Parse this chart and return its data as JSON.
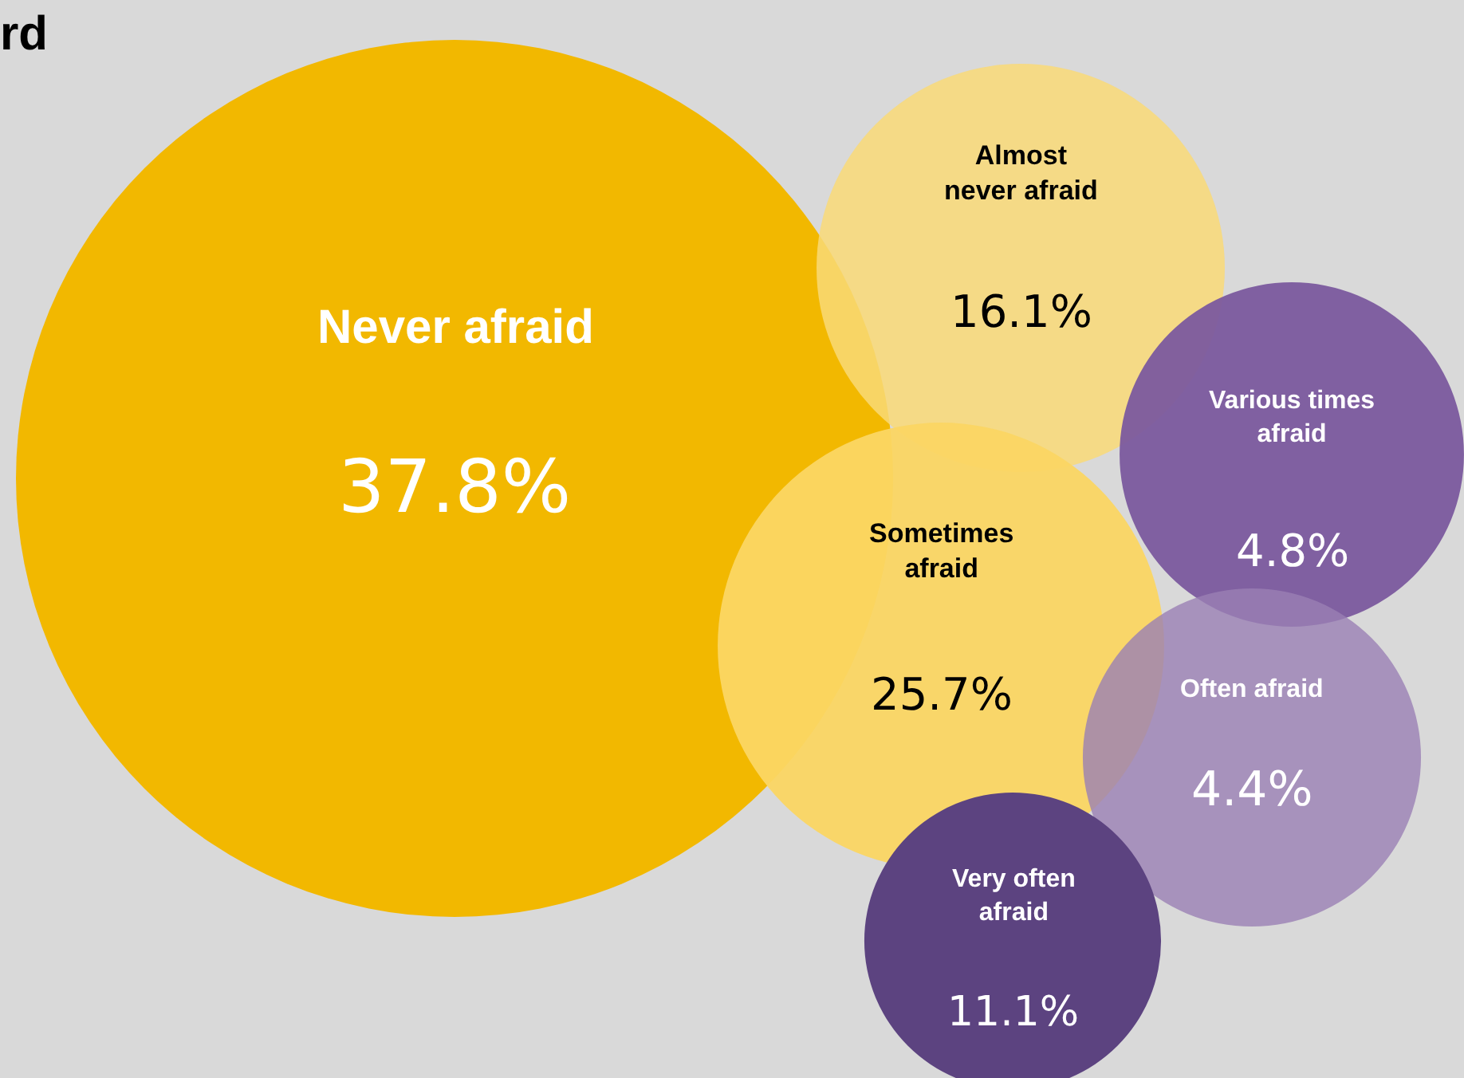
{
  "chart_data": {
    "type": "other",
    "title": "rd",
    "categories": [
      "Never afraid",
      "Almost never afraid",
      "Sometimes afraid",
      "Various times afraid",
      "Often afraid",
      "Very often afraid"
    ],
    "values": [
      37.8,
      16.1,
      25.7,
      4.8,
      4.4,
      11.1
    ],
    "value_labels": [
      "37.8%",
      "16.1%",
      "25.7%",
      "4.8%",
      "4.4%",
      "11.1%"
    ],
    "colors": [
      "#f2b800",
      "#f9d977",
      "#fbd663",
      "#7b5a9e",
      "#9a80b4",
      "#5c4380"
    ]
  }
}
